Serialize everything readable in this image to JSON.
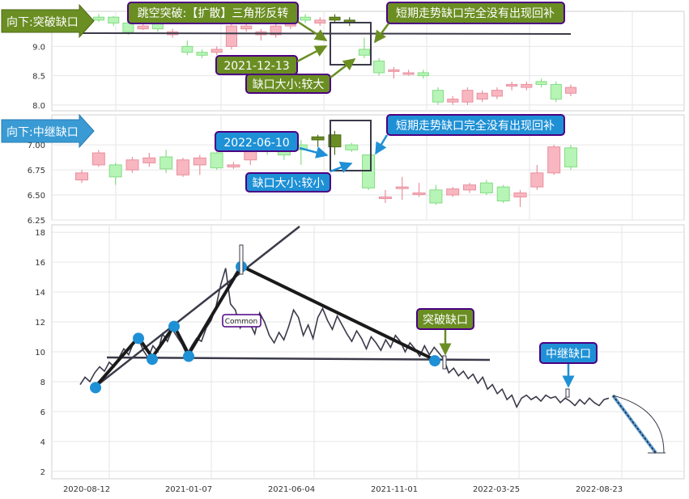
{
  "colors": {
    "up_fill": "#f8b6c0",
    "down_fill": "#b6f5b6",
    "highlight_green": "#6b8e23",
    "green_box": "#6b8e23",
    "blue_box": "#1e90d6",
    "box_border": "#4b0082",
    "line_dark": "#3a3a4a",
    "marker_blue": "#1e90d6",
    "projection": "#5b9bd5",
    "grid": "#e6e6e6"
  },
  "panels": {
    "top": {
      "banner": "向下:突破缺口",
      "annotation_pattern": "跳空突破:【扩散】三角形反转",
      "annotation_date": "2021-12-13",
      "annotation_size": "缺口大小:较大",
      "annotation_fill": "短期走势缺口完全没有出现回补"
    },
    "middle": {
      "banner": "向下:中继缺口",
      "annotation_date": "2022-06-10",
      "annotation_size": "缺口大小:较小",
      "annotation_fill": "短期走势缺口完全没有出现回补"
    },
    "bottom": {
      "label_common": "Common",
      "label_breakaway": "突破缺口",
      "label_runaway": "中继缺口"
    }
  },
  "chart_data": [
    {
      "type": "candlestick",
      "panel": "top",
      "y_ticks": [
        "8.0",
        "8.5",
        "9.0"
      ],
      "ylim": [
        7.9,
        9.6
      ],
      "candles": [
        {
          "o": 9.5,
          "c": 9.45,
          "h": 9.55,
          "l": 9.42
        },
        {
          "o": 9.5,
          "c": 9.4,
          "h": 9.52,
          "l": 9.35
        },
        {
          "o": 9.4,
          "c": 9.25,
          "h": 9.45,
          "l": 9.2
        },
        {
          "o": 9.3,
          "c": 9.35,
          "h": 9.4,
          "l": 9.28
        },
        {
          "o": 9.45,
          "c": 9.3,
          "h": 9.5,
          "l": 9.25
        },
        {
          "o": 9.2,
          "c": 9.25,
          "h": 9.3,
          "l": 9.15
        },
        {
          "o": 9.0,
          "c": 8.9,
          "h": 9.1,
          "l": 8.85
        },
        {
          "o": 8.9,
          "c": 8.85,
          "h": 8.95,
          "l": 8.8
        },
        {
          "o": 8.9,
          "c": 8.95,
          "h": 9.0,
          "l": 8.85
        },
        {
          "o": 9.0,
          "c": 9.35,
          "h": 9.4,
          "l": 8.95
        },
        {
          "o": 9.3,
          "c": 9.35,
          "h": 9.4,
          "l": 9.25
        },
        {
          "o": 9.2,
          "c": 9.25,
          "h": 9.3,
          "l": 9.1
        },
        {
          "o": 9.2,
          "c": 9.35,
          "h": 9.4,
          "l": 9.15
        },
        {
          "o": 9.35,
          "c": 9.5,
          "h": 9.6,
          "l": 9.3
        },
        {
          "o": 9.5,
          "c": 9.45,
          "h": 9.55,
          "l": 9.4
        },
        {
          "o": 9.4,
          "c": 9.45,
          "h": 9.5,
          "l": 9.35
        },
        {
          "o": 9.5,
          "c": 9.45,
          "h": 9.55,
          "l": 9.4
        },
        {
          "o": 9.45,
          "c": 9.4,
          "h": 9.5,
          "l": 9.35
        },
        {
          "o": 8.95,
          "c": 8.85,
          "h": 9.15,
          "l": 8.8
        },
        {
          "o": 8.75,
          "c": 8.55,
          "h": 8.8,
          "l": 8.5
        },
        {
          "o": 8.6,
          "c": 8.6,
          "h": 8.65,
          "l": 8.45
        },
        {
          "o": 8.55,
          "c": 8.55,
          "h": 8.6,
          "l": 8.5
        },
        {
          "o": 8.55,
          "c": 8.5,
          "h": 8.6,
          "l": 8.45
        },
        {
          "o": 8.25,
          "c": 8.05,
          "h": 8.3,
          "l": 8.0
        },
        {
          "o": 8.05,
          "c": 8.1,
          "h": 8.15,
          "l": 8.0
        },
        {
          "o": 8.05,
          "c": 8.25,
          "h": 8.3,
          "l": 8.0
        },
        {
          "o": 8.1,
          "c": 8.2,
          "h": 8.25,
          "l": 8.05
        },
        {
          "o": 8.15,
          "c": 8.25,
          "h": 8.3,
          "l": 8.1
        },
        {
          "o": 8.35,
          "c": 8.35,
          "h": 8.4,
          "l": 8.25
        },
        {
          "o": 8.3,
          "c": 8.35,
          "h": 8.4,
          "l": 8.25
        },
        {
          "o": 8.4,
          "c": 8.35,
          "h": 8.45,
          "l": 8.3
        },
        {
          "o": 8.35,
          "c": 8.1,
          "h": 8.4,
          "l": 8.05
        },
        {
          "o": 8.2,
          "c": 8.3,
          "h": 8.35,
          "l": 8.15
        }
      ],
      "gap_candles": [
        16,
        17
      ]
    },
    {
      "type": "candlestick",
      "panel": "middle",
      "y_ticks": [
        "6.25",
        "6.50",
        "6.75",
        "7.00"
      ],
      "ylim": [
        6.25,
        7.3
      ],
      "candles": [
        {
          "o": 6.65,
          "c": 6.72,
          "h": 6.75,
          "l": 6.62
        },
        {
          "o": 6.8,
          "c": 6.92,
          "h": 6.95,
          "l": 6.78
        },
        {
          "o": 6.8,
          "c": 6.68,
          "h": 6.82,
          "l": 6.6
        },
        {
          "o": 6.75,
          "c": 6.85,
          "h": 6.88,
          "l": 6.72
        },
        {
          "o": 6.82,
          "c": 6.87,
          "h": 6.92,
          "l": 6.78
        },
        {
          "o": 6.88,
          "c": 6.76,
          "h": 6.95,
          "l": 6.72
        },
        {
          "o": 6.7,
          "c": 6.85,
          "h": 6.87,
          "l": 6.68
        },
        {
          "o": 6.8,
          "c": 6.87,
          "h": 6.9,
          "l": 6.7
        },
        {
          "o": 6.92,
          "c": 6.77,
          "h": 6.93,
          "l": 6.75
        },
        {
          "o": 6.78,
          "c": 6.8,
          "h": 6.83,
          "l": 6.76
        },
        {
          "o": 6.85,
          "c": 7.08,
          "h": 7.1,
          "l": 6.8
        },
        {
          "o": 7.02,
          "c": 7.0,
          "h": 7.05,
          "l": 6.9
        },
        {
          "o": 6.95,
          "c": 6.9,
          "h": 6.97,
          "l": 6.85
        },
        {
          "o": 7.0,
          "c": 6.95,
          "h": 7.05,
          "l": 6.8
        },
        {
          "o": 7.05,
          "c": 7.08,
          "h": 7.1,
          "l": 6.98
        },
        {
          "o": 7.1,
          "c": 6.98,
          "h": 7.14,
          "l": 6.9
        },
        {
          "o": 7.0,
          "c": 6.95,
          "h": 7.02,
          "l": 6.93
        },
        {
          "o": 6.9,
          "c": 6.57,
          "h": 6.9,
          "l": 6.55
        },
        {
          "o": 6.48,
          "c": 6.48,
          "h": 6.55,
          "l": 6.42
        },
        {
          "o": 6.58,
          "c": 6.58,
          "h": 6.68,
          "l": 6.45
        },
        {
          "o": 6.52,
          "c": 6.52,
          "h": 6.62,
          "l": 6.48
        },
        {
          "o": 6.55,
          "c": 6.42,
          "h": 6.6,
          "l": 6.4
        },
        {
          "o": 6.5,
          "c": 6.56,
          "h": 6.58,
          "l": 6.48
        },
        {
          "o": 6.55,
          "c": 6.6,
          "h": 6.62,
          "l": 6.52
        },
        {
          "o": 6.62,
          "c": 6.52,
          "h": 6.65,
          "l": 6.5
        },
        {
          "o": 6.58,
          "c": 6.44,
          "h": 6.6,
          "l": 6.42
        },
        {
          "o": 6.48,
          "c": 6.52,
          "h": 6.55,
          "l": 6.38
        },
        {
          "o": 6.58,
          "c": 6.72,
          "h": 6.8,
          "l": 6.55
        },
        {
          "o": 6.72,
          "c": 6.98,
          "h": 7.0,
          "l": 6.7
        },
        {
          "o": 6.97,
          "c": 6.78,
          "h": 7.0,
          "l": 6.75
        }
      ],
      "gap_candles": [
        14,
        15
      ]
    },
    {
      "type": "line",
      "panel": "bottom",
      "x_ticks": [
        "2020-08-12",
        "2021-01-07",
        "2021-06-04",
        "2021-11-01",
        "2022-03-25",
        "2022-08-23"
      ],
      "y_ticks": [
        "2",
        "4",
        "6",
        "8",
        "10",
        "12",
        "14",
        "16",
        "18"
      ],
      "ylim": [
        1.5,
        18.5
      ],
      "series": [
        {
          "values": [
            7.8,
            8.3,
            8.0,
            8.6,
            9.0,
            8.7,
            9.3,
            9.0,
            9.6,
            10.2,
            9.8,
            10.6,
            10.9,
            10.1,
            9.6,
            10.4,
            10.0,
            11.2,
            10.7,
            11.5,
            11.0,
            10.5,
            9.8,
            10.4,
            10.9,
            10.7,
            11.6,
            12.1,
            13.0,
            14.5,
            15.6,
            13.2,
            12.8,
            11.6,
            12.4,
            11.9,
            11.2,
            12.6,
            12.0,
            11.1,
            10.6,
            11.3,
            10.8,
            11.7,
            12.8,
            12.3,
            11.1,
            11.8,
            10.9,
            12.3,
            12.9,
            12.1,
            11.5,
            12.4,
            11.8,
            11.2,
            10.7,
            11.4,
            10.9,
            10.2,
            11.0,
            10.6,
            10.1,
            10.8,
            10.3,
            11.1,
            10.7,
            10.0,
            10.6,
            10.2,
            9.7,
            10.4,
            9.8,
            10.3,
            9.9,
            9.5,
            8.6,
            8.9,
            8.4,
            8.7,
            8.2,
            8.5,
            7.9,
            8.3,
            7.5,
            7.8,
            7.2,
            7.5,
            6.8,
            7.1,
            6.3,
            6.9,
            7.1,
            6.8,
            7.0,
            6.7,
            7.1,
            6.9,
            7.0,
            6.6,
            6.9,
            6.7,
            6.4,
            6.8,
            6.5,
            6.9,
            6.6,
            6.4,
            6.8,
            6.9
          ]
        }
      ],
      "markers": [
        7.6,
        10.9,
        9.5,
        11.7,
        9.7,
        15.7,
        9.4
      ],
      "projection": {
        "from": 7.0,
        "to": 3.1
      },
      "gap_ranges": [
        [
          8.8,
          9.3
        ],
        [
          6.9,
          7.3
        ]
      ]
    }
  ]
}
